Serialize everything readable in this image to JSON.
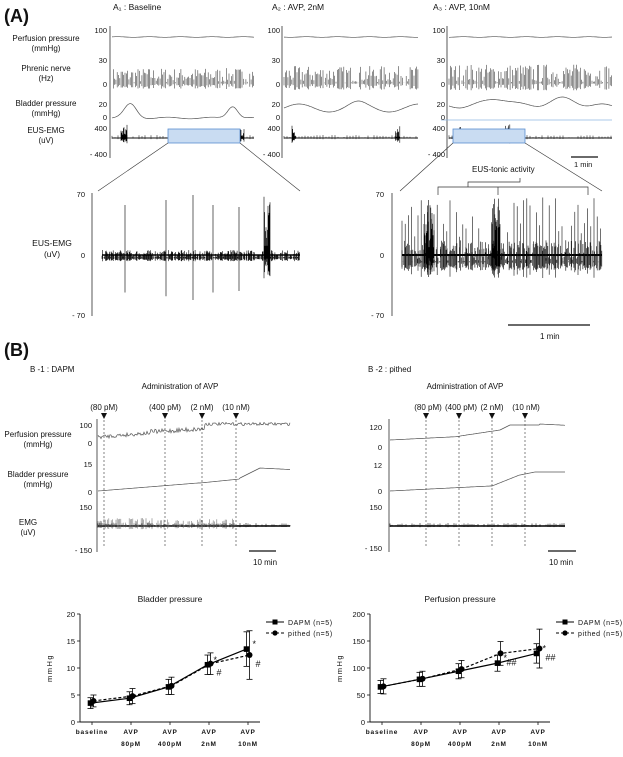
{
  "panel_a": {
    "label": "(A)",
    "col_titles": [
      "A₁ : Baseline",
      "A₂ : AVP, 2nM",
      "A₃ : AVP, 10nM"
    ],
    "rows": [
      {
        "label1": "Perfusion pressure",
        "label2": "(mmHg)",
        "ticks": [
          "100",
          "0"
        ]
      },
      {
        "label1": "Phrenic nerve",
        "label2": "(Hz)",
        "ticks": [
          "30",
          "0"
        ]
      },
      {
        "label1": "Bladder pressure",
        "label2": "(mmHg)",
        "ticks": [
          "20",
          "0"
        ]
      },
      {
        "label1": "EUS-EMG",
        "label2": "(uV)",
        "ticks": [
          "400",
          "- 400"
        ]
      }
    ],
    "scale_top": "1 min",
    "zoom_left": {
      "label1": "EUS-EMG",
      "label2": "(uV)",
      "ticks": [
        "70",
        "0",
        "- 70"
      ]
    },
    "zoom_right": {
      "ticks": [
        "70",
        "0",
        "- 70"
      ],
      "annotation": "EUS-tonic activity",
      "scale": "1 min"
    }
  },
  "panel_b": {
    "label": "(B)",
    "b1": {
      "title": "B -1 : DAPM",
      "admin": "Administration of AVP",
      "doses": [
        "(80 pM)",
        "(400 pM)",
        "(2 nM)",
        "(10 nM)"
      ],
      "rows": [
        {
          "label1": "Perfusion pressure",
          "label2": "(mmHg)",
          "ticks": [
            "100",
            "0"
          ]
        },
        {
          "label1": "Bladder pressure",
          "label2": "(mmHg)",
          "ticks": [
            "15",
            "0"
          ]
        },
        {
          "label1": "EMG",
          "label2": "(uV)",
          "ticks": [
            "150",
            "- 150"
          ]
        }
      ],
      "scale": "10 min"
    },
    "b2": {
      "title": "B -2 : pithed",
      "admin": "Administration of AVP",
      "doses": [
        "(80 pM)",
        "(400 pM)",
        "(2 nM)",
        "(10 nM)"
      ],
      "ticks": [
        "120",
        "0",
        "12",
        "0",
        "150",
        "- 150"
      ],
      "scale": "10 min"
    }
  },
  "chart_data": [
    {
      "type": "line",
      "title": "Bladder pressure",
      "ylabel": "mmHg",
      "xlabel": "",
      "categories": [
        [
          "baseline",
          ""
        ],
        [
          "AVP",
          "80pM"
        ],
        [
          "AVP",
          "400pM"
        ],
        [
          "AVP",
          "2nM"
        ],
        [
          "AVP",
          "10nM"
        ]
      ],
      "ylim": [
        0,
        20
      ],
      "yticks": [
        "0",
        "5",
        "10",
        "15",
        "20"
      ],
      "series": [
        {
          "name": "DAPM (n=5)",
          "values": [
            3.5,
            4.4,
            6.5,
            10.6,
            13.5
          ],
          "errors": [
            1.0,
            1.2,
            1.4,
            1.8,
            3.2
          ],
          "marker": "square",
          "dash": false,
          "marks": [
            "",
            "",
            "",
            "*",
            "*"
          ]
        },
        {
          "name": "pithed (n=5)",
          "values": [
            3.9,
            4.8,
            6.7,
            10.8,
            12.4
          ],
          "errors": [
            1.1,
            1.4,
            1.6,
            2.0,
            4.5
          ],
          "marker": "circle",
          "dash": true,
          "marks": [
            "",
            "",
            "",
            "#",
            "#"
          ]
        }
      ]
    },
    {
      "type": "line",
      "title": "Perfusion pressure",
      "ylabel": "mmHg",
      "xlabel": "",
      "categories": [
        [
          "baseline",
          ""
        ],
        [
          "AVP",
          "80pM"
        ],
        [
          "AVP",
          "400pM"
        ],
        [
          "AVP",
          "2nM"
        ],
        [
          "AVP",
          "10nM"
        ]
      ],
      "ylim": [
        0,
        200
      ],
      "yticks": [
        "0",
        "50",
        "100",
        "150",
        "200"
      ],
      "series": [
        {
          "name": "DAPM (n=5)",
          "values": [
            65,
            79,
            94,
            109,
            127
          ],
          "errors": [
            12,
            13,
            14,
            15,
            18
          ],
          "marker": "square",
          "dash": false,
          "marks": [
            "",
            "",
            "",
            "*",
            "*"
          ]
        },
        {
          "name": "pithed (n=5)",
          "values": [
            66,
            80,
            98,
            127,
            136
          ],
          "errors": [
            14,
            14,
            16,
            22,
            36
          ],
          "marker": "circle",
          "dash": true,
          "marks": [
            "",
            "",
            "",
            "##",
            "##"
          ]
        }
      ]
    }
  ]
}
